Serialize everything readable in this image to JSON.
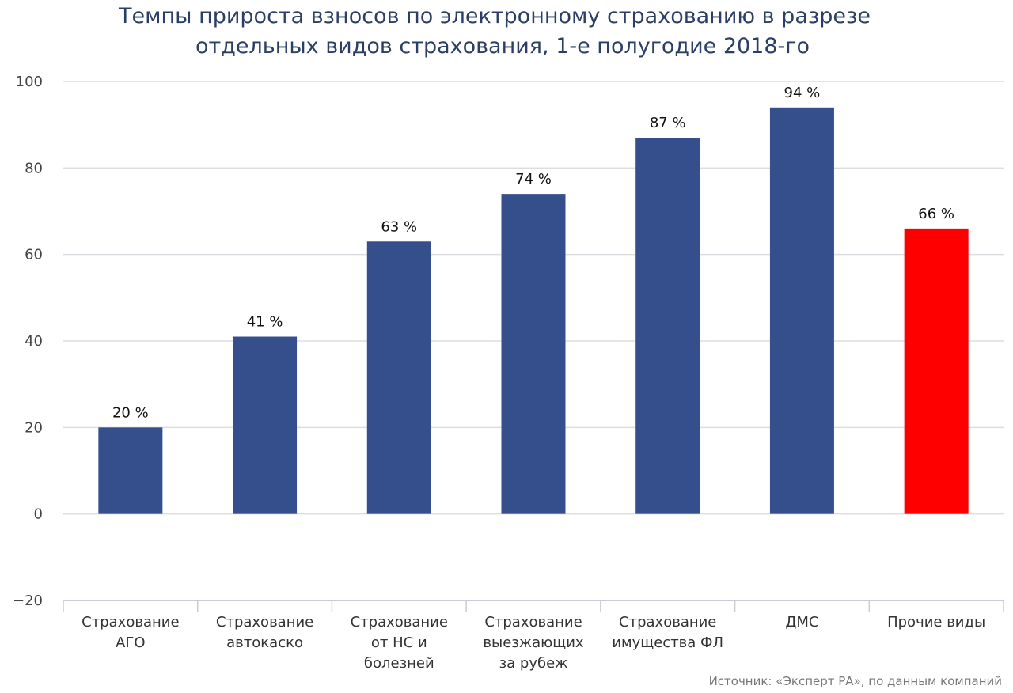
{
  "chart_data": {
    "type": "bar",
    "title": "Темпы прироста взносов по электронному страхованию в разрезе отдельных видов страхования, 1-е полугодие 2018-го",
    "title_lines": [
      "Темпы прироста взносов по электронному страхованию в разрезе",
      "отдельных видов страхования, 1-е полугодие 2018-го"
    ],
    "xlabel": "",
    "ylabel": "",
    "ylim": [
      -20,
      100
    ],
    "yticks": [
      "100",
      "80",
      "60",
      "40",
      "20",
      "0",
      "-20"
    ],
    "grid": true,
    "legend": "none",
    "categories": [
      [
        "Страхование",
        "АГО"
      ],
      [
        "Страхование",
        "автокаско"
      ],
      [
        "Страхование",
        "от НС и",
        "болезней"
      ],
      [
        "Страхование",
        "выезжающих",
        "за рубеж"
      ],
      [
        "Страхование",
        "имущества ФЛ"
      ],
      [
        "ДМС"
      ],
      [
        "Прочие виды"
      ]
    ],
    "values": [
      20,
      41,
      63,
      74,
      87,
      94,
      66
    ],
    "data_labels": [
      "20 %",
      "41 %",
      "63 %",
      "74 %",
      "87 %",
      "94 %",
      "66 %"
    ],
    "colors": [
      "#354f8c",
      "#354f8c",
      "#354f8c",
      "#354f8c",
      "#354f8c",
      "#354f8c",
      "#ff0000"
    ],
    "source": "Источник: «Эксперт РА», по данным компаний"
  }
}
